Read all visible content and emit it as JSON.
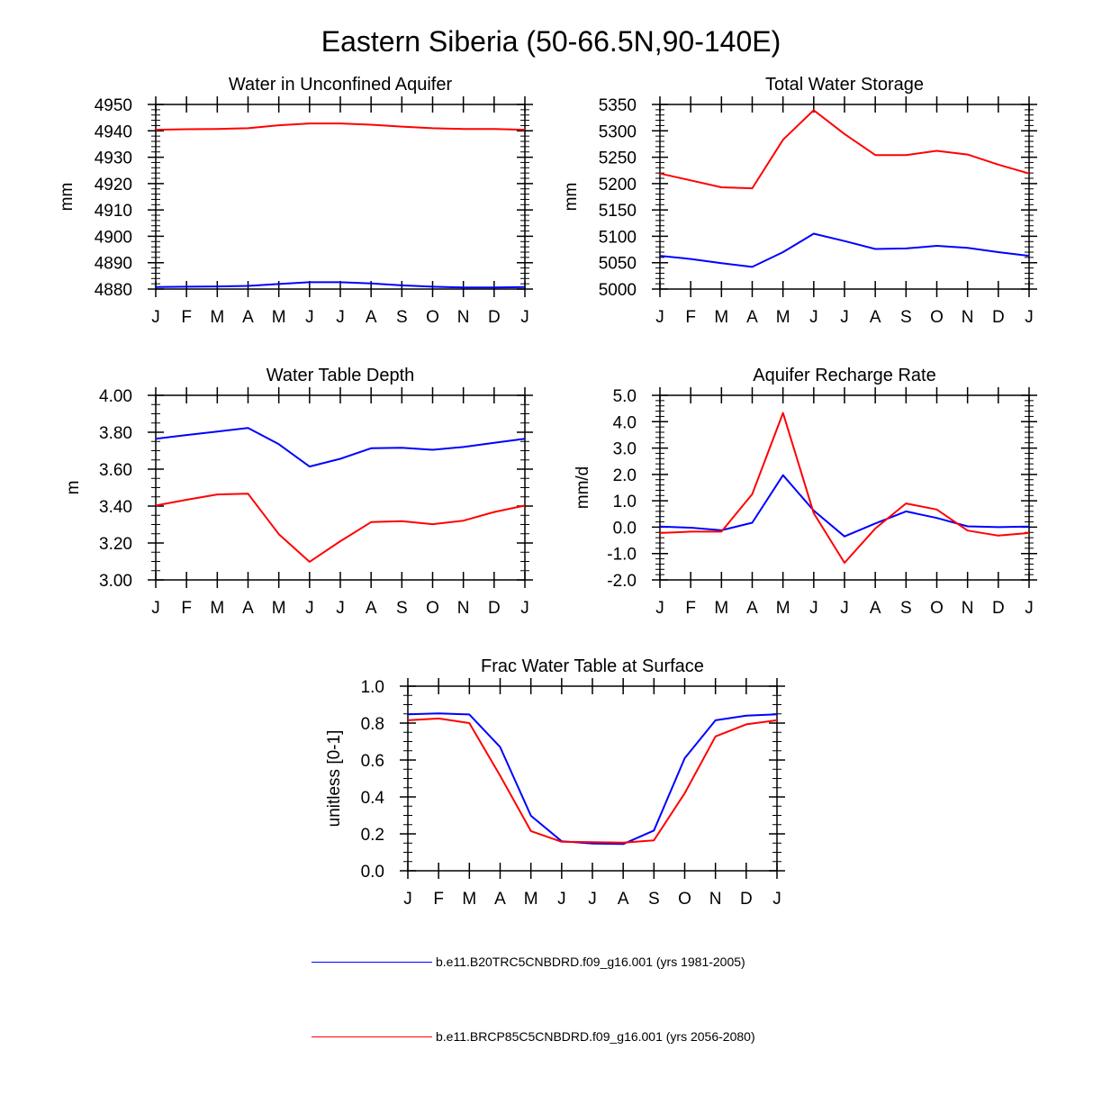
{
  "figure": {
    "title": "Eastern Siberia (50-66.5N,90-140E)"
  },
  "colors": {
    "series1": "#0000ff",
    "series2": "#ff0000",
    "axis": "#000000"
  },
  "legend": {
    "entries": [
      {
        "label": "b.e11.B20TRC5CNBDRD.f09_g16.001 (yrs 1981-2005)",
        "color": "#0000ff"
      },
      {
        "label": "b.e11.BRCP85C5CNBDRD.f09_g16.001 (yrs 2056-2080)",
        "color": "#ff0000"
      }
    ]
  },
  "chart_data": [
    {
      "type": "line",
      "title": "Water in Unconfined Aquifer",
      "ylabel": "mm",
      "categories": [
        "J",
        "F",
        "M",
        "A",
        "M",
        "J",
        "J",
        "A",
        "S",
        "O",
        "N",
        "D",
        "J"
      ],
      "ylim": [
        4880,
        4950
      ],
      "yticks": [
        4880,
        4890,
        4900,
        4910,
        4920,
        4930,
        4940,
        4950
      ],
      "ytick_labels": [
        "4880",
        "4890",
        "4900",
        "4910",
        "4920",
        "4930",
        "4940",
        "4950"
      ],
      "yminor": 5,
      "series": [
        {
          "name": "b.e11.B20TRC5CNBDRD.f09_g16.001 (yrs 1981-2005)",
          "color": "#0000ff",
          "values": [
            4880.8,
            4880.9,
            4881.0,
            4881.2,
            4881.9,
            4882.6,
            4882.6,
            4882.1,
            4881.4,
            4880.9,
            4880.6,
            4880.6,
            4880.8
          ]
        },
        {
          "name": "b.e11.BRCP85C5CNBDRD.f09_g16.001 (yrs 2056-2080)",
          "color": "#ff0000",
          "values": [
            4940.4,
            4940.6,
            4940.7,
            4941.0,
            4942.1,
            4942.8,
            4942.8,
            4942.3,
            4941.6,
            4941.0,
            4940.7,
            4940.7,
            4940.4
          ]
        }
      ]
    },
    {
      "type": "line",
      "title": "Total Water Storage",
      "ylabel": "mm",
      "categories": [
        "J",
        "F",
        "M",
        "A",
        "M",
        "J",
        "J",
        "A",
        "S",
        "O",
        "N",
        "D",
        "J"
      ],
      "ylim": [
        5000,
        5350
      ],
      "yticks": [
        5000,
        5050,
        5100,
        5150,
        5200,
        5250,
        5300,
        5350
      ],
      "ytick_labels": [
        "5000",
        "5050",
        "5100",
        "5150",
        "5200",
        "5250",
        "5300",
        "5350"
      ],
      "yminor": 5,
      "series": [
        {
          "name": "b.e11.B20TRC5CNBDRD.f09_g16.001 (yrs 1981-2005)",
          "color": "#0000ff",
          "values": [
            5063,
            5057,
            5049,
            5042,
            5070,
            5105,
            5091,
            5076,
            5077,
            5082,
            5078,
            5070,
            5063
          ]
        },
        {
          "name": "b.e11.BRCP85C5CNBDRD.f09_g16.001 (yrs 2056-2080)",
          "color": "#ff0000",
          "values": [
            5219,
            5206,
            5193,
            5191,
            5283,
            5339,
            5294,
            5254,
            5254,
            5262,
            5255,
            5236,
            5219
          ]
        }
      ]
    },
    {
      "type": "line",
      "title": "Water Table Depth",
      "ylabel": "m",
      "categories": [
        "J",
        "F",
        "M",
        "A",
        "M",
        "J",
        "J",
        "A",
        "S",
        "O",
        "N",
        "D",
        "J"
      ],
      "ylim": [
        3.0,
        4.0
      ],
      "yticks": [
        3.0,
        3.2,
        3.4,
        3.6,
        3.8,
        4.0
      ],
      "ytick_labels": [
        "3.00",
        "3.20",
        "3.40",
        "3.60",
        "3.80",
        "4.00"
      ],
      "yminor": 4,
      "series": [
        {
          "name": "b.e11.B20TRC5CNBDRD.f09_g16.001 (yrs 1981-2005)",
          "color": "#0000ff",
          "values": [
            3.765,
            3.785,
            3.804,
            3.823,
            3.735,
            3.614,
            3.656,
            3.713,
            3.716,
            3.705,
            3.72,
            3.743,
            3.765
          ]
        },
        {
          "name": "b.e11.BRCP85C5CNBDRD.f09_g16.001 (yrs 2056-2080)",
          "color": "#ff0000",
          "values": [
            3.403,
            3.434,
            3.463,
            3.467,
            3.248,
            3.098,
            3.21,
            3.313,
            3.318,
            3.302,
            3.321,
            3.368,
            3.403
          ]
        }
      ]
    },
    {
      "type": "line",
      "title": "Aquifer Recharge Rate",
      "ylabel": "mm/d",
      "categories": [
        "J",
        "F",
        "M",
        "A",
        "M",
        "J",
        "J",
        "A",
        "S",
        "O",
        "N",
        "D",
        "J"
      ],
      "ylim": [
        -2.0,
        5.0
      ],
      "yticks": [
        -2,
        -1,
        0,
        1,
        2,
        3,
        4,
        5
      ],
      "ytick_labels": [
        "-2.0",
        "-1.0",
        "0.0",
        "1.0",
        "2.0",
        "3.0",
        "4.0",
        "5.0"
      ],
      "yminor": 5,
      "series": [
        {
          "name": "b.e11.B20TRC5CNBDRD.f09_g16.001 (yrs 1981-2005)",
          "color": "#0000ff",
          "values": [
            0.02,
            -0.02,
            -0.12,
            0.17,
            1.97,
            0.63,
            -0.35,
            0.14,
            0.6,
            0.35,
            0.03,
            0.0,
            0.02
          ]
        },
        {
          "name": "b.e11.BRCP85C5CNBDRD.f09_g16.001 (yrs 2056-2080)",
          "color": "#ff0000",
          "values": [
            -0.22,
            -0.17,
            -0.17,
            1.25,
            4.33,
            0.53,
            -1.35,
            -0.05,
            0.9,
            0.67,
            -0.13,
            -0.32,
            -0.22
          ]
        }
      ]
    },
    {
      "type": "line",
      "title": "Frac Water Table at Surface",
      "ylabel": "unitless [0-1]",
      "categories": [
        "J",
        "F",
        "M",
        "A",
        "M",
        "J",
        "J",
        "A",
        "S",
        "O",
        "N",
        "D",
        "J"
      ],
      "ylim": [
        0.0,
        1.0
      ],
      "yticks": [
        0.0,
        0.2,
        0.4,
        0.6,
        0.8,
        1.0
      ],
      "ytick_labels": [
        "0.0",
        "0.2",
        "0.4",
        "0.6",
        "0.8",
        "1.0"
      ],
      "yminor": 4,
      "series": [
        {
          "name": "b.e11.B20TRC5CNBDRD.f09_g16.001 (yrs 1981-2005)",
          "color": "#0000ff",
          "values": [
            0.848,
            0.852,
            0.847,
            0.67,
            0.298,
            0.16,
            0.148,
            0.145,
            0.218,
            0.61,
            0.815,
            0.84,
            0.848
          ]
        },
        {
          "name": "b.e11.BRCP85C5CNBDRD.f09_g16.001 (yrs 2056-2080)",
          "color": "#ff0000",
          "values": [
            0.815,
            0.825,
            0.8,
            0.515,
            0.215,
            0.157,
            0.155,
            0.152,
            0.165,
            0.42,
            0.728,
            0.793,
            0.815
          ]
        }
      ]
    }
  ]
}
